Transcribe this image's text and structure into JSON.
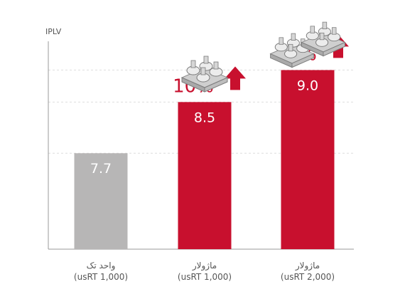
{
  "chart_data": {
    "type": "bar",
    "ylabel": "IPLV",
    "ylim": [
      6.2,
      9.45
    ],
    "grid": "dashed horizontal",
    "categories": [
      [
        "واحد تک",
        "(usRT 1,000)"
      ],
      [
        "ماژولار",
        "(usRT 1,000)"
      ],
      [
        "ماژولار",
        "(usRT 2,000)"
      ]
    ],
    "values": [
      7.7,
      8.5,
      9.0
    ],
    "value_labels": [
      "7.7",
      "8.5",
      "9.0"
    ],
    "increase_labels": [
      "",
      "10%",
      "17%"
    ],
    "bar_colors": [
      "#b7b6b6",
      "#c8102e",
      "#c8102e"
    ],
    "increase_arrow_color": "#c8102e",
    "images": [
      "",
      "chiller-unit-1-module",
      "chiller-unit-2-modules"
    ]
  }
}
